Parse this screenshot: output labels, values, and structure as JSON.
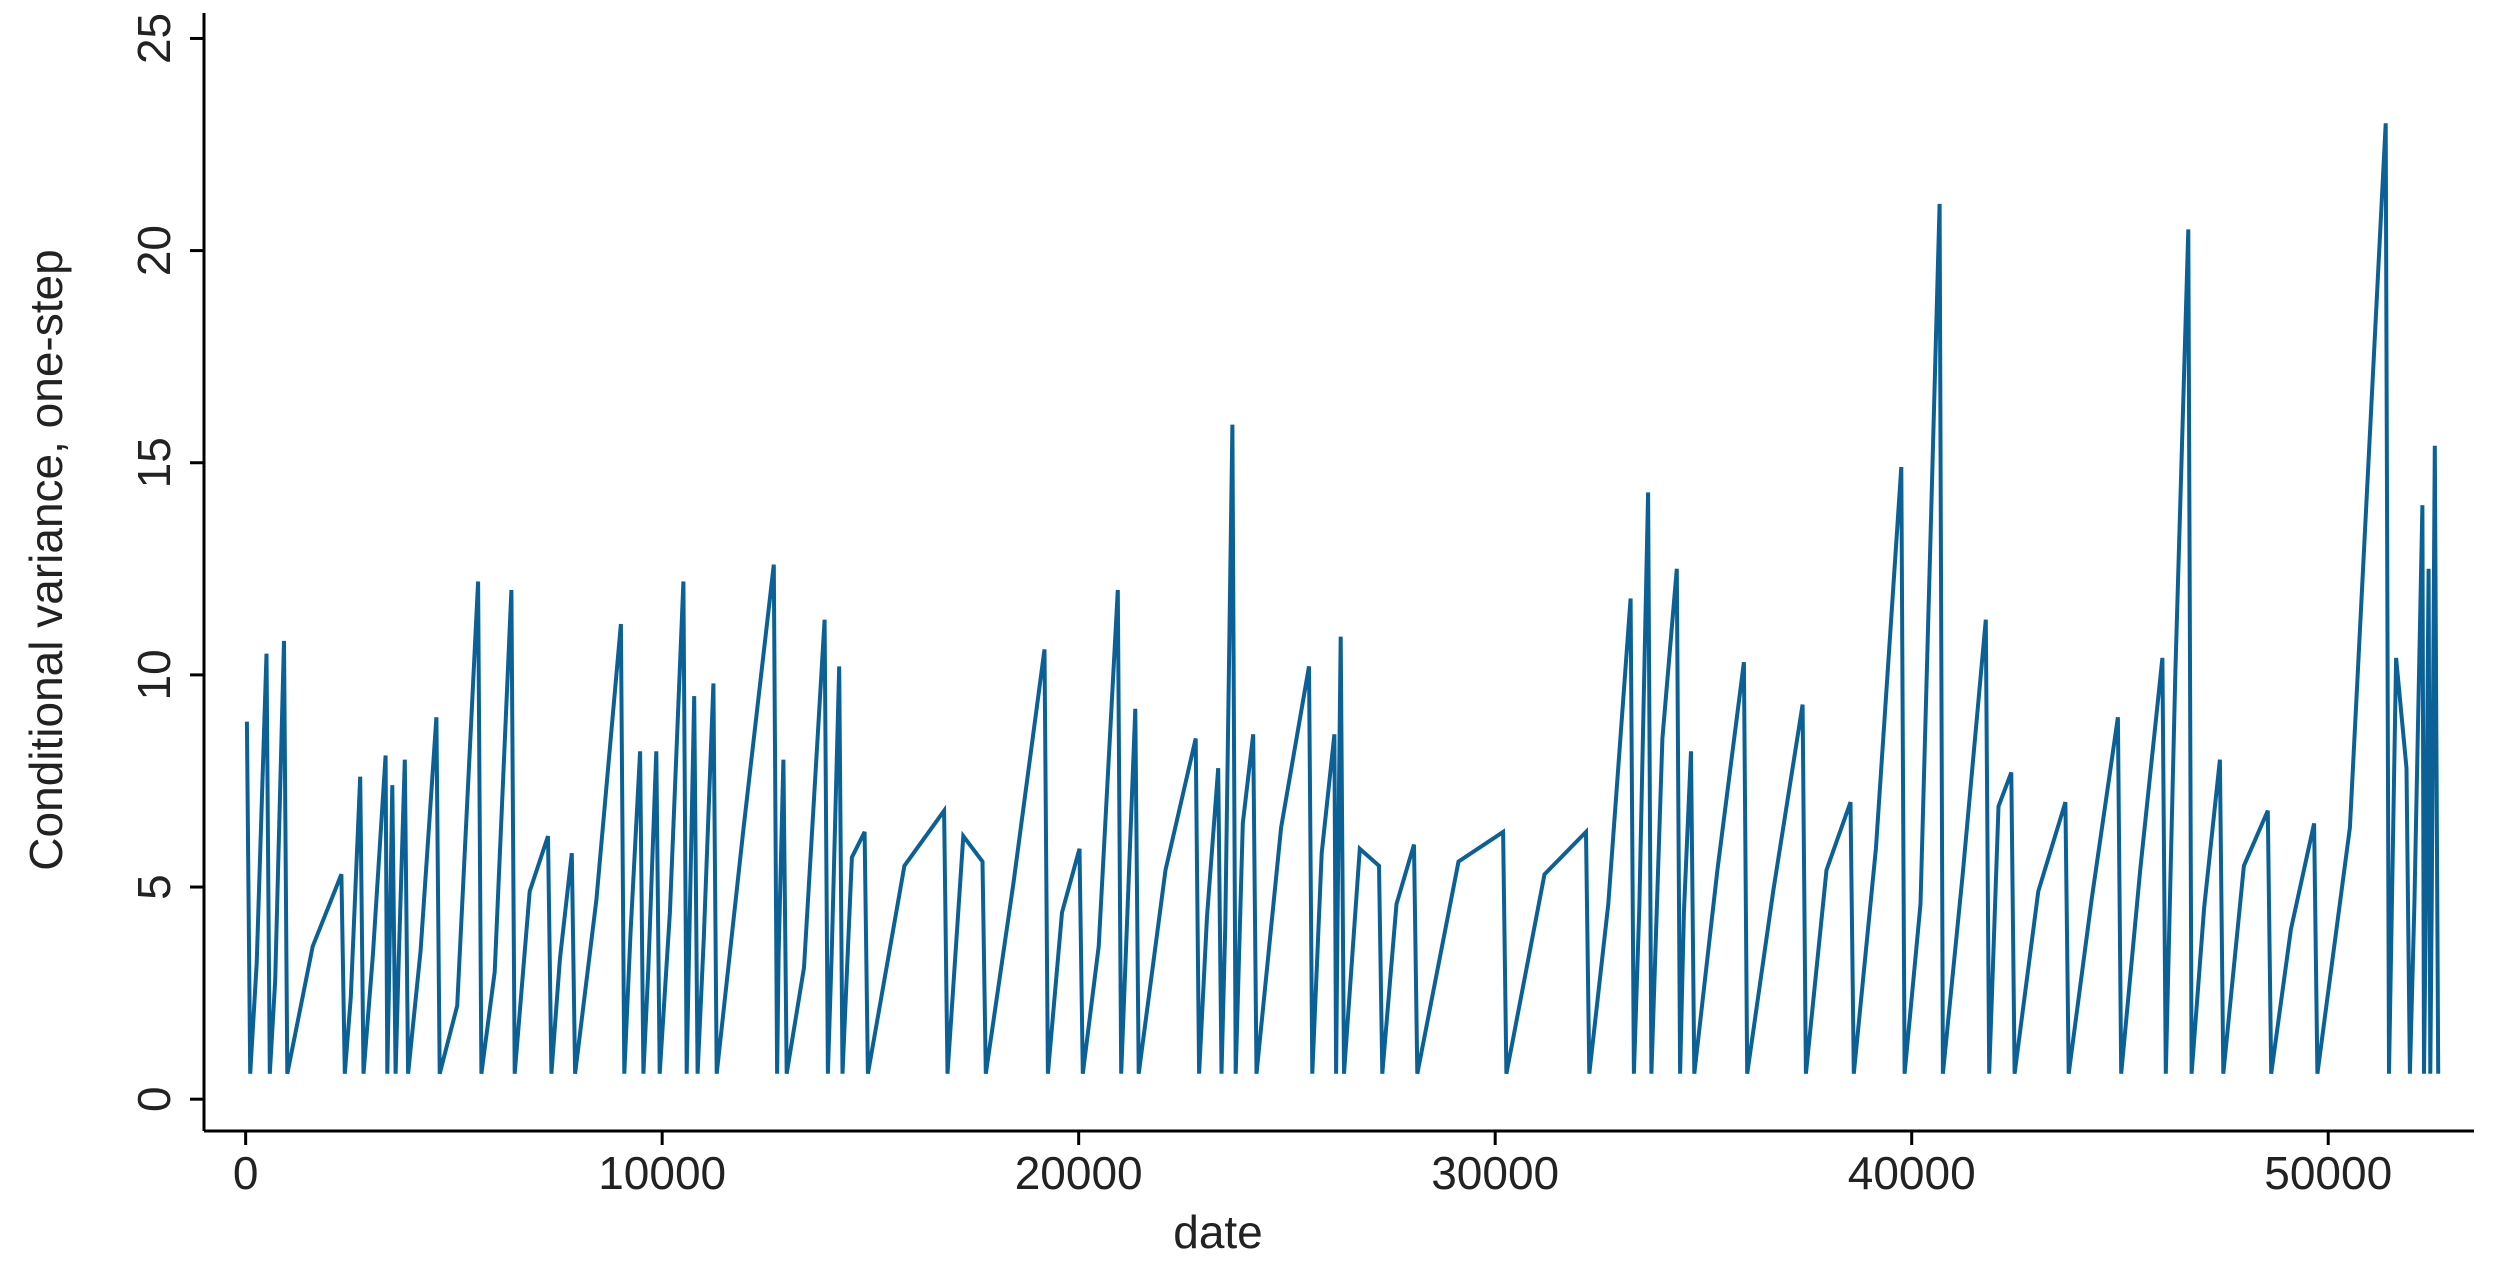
{
  "chart_data": {
    "type": "line",
    "x_label": "date",
    "y_label": "Conditional variance, one-step",
    "color": "#0b6196",
    "xlim": [
      -1000,
      53500
    ],
    "ylim": [
      -0.75,
      25.6
    ],
    "xticks": [
      0,
      10000,
      20000,
      30000,
      40000,
      50000
    ],
    "yticks": [
      0,
      5,
      10,
      15,
      20,
      25
    ],
    "x": [
      30,
      110,
      265,
      500,
      580,
      710,
      920,
      1000,
      1610,
      2300,
      2380,
      2525,
      2750,
      2830,
      3055,
      3360,
      3400,
      3440,
      3520,
      3600,
      3670,
      3820,
      3900,
      4200,
      4580,
      4660,
      5080,
      5580,
      5660,
      5980,
      6380,
      6460,
      6820,
      7260,
      7340,
      7545,
      7830,
      7910,
      8420,
      9010,
      9090,
      9240,
      9470,
      9550,
      9665,
      9860,
      9940,
      10185,
      10510,
      10590,
      10640,
      10770,
      10850,
      11000,
      11230,
      11310,
      11955,
      12680,
      12760,
      12795,
      12910,
      12990,
      13405,
      13900,
      13980,
      14075,
      14250,
      14330,
      14555,
      14860,
      14940,
      15815,
      16770,
      16850,
      17230,
      17690,
      17770,
      18435,
      19180,
      19260,
      19600,
      20020,
      20100,
      20480,
      20940,
      21020,
      21150,
      21360,
      21440,
      22085,
      22810,
      22890,
      23080,
      23350,
      23430,
      23520,
      23690,
      23770,
      23940,
      24190,
      24270,
      24860,
      25530,
      25610,
      25835,
      26140,
      26180,
      26215,
      26290,
      26370,
      26750,
      27210,
      27290,
      27630,
      28050,
      28130,
      29120,
      30190,
      30270,
      31185,
      32180,
      32260,
      32715,
      33250,
      33330,
      33460,
      33670,
      33750,
      34015,
      34360,
      34440,
      34530,
      34700,
      34780,
      35335,
      35970,
      36050,
      36675,
      37380,
      37460,
      37955,
      38530,
      38610,
      39140,
      39750,
      39830,
      40210,
      40670,
      40750,
      41225,
      41780,
      41860,
      42085,
      42390,
      42470,
      43040,
      43690,
      43770,
      44320,
      44950,
      45030,
      45485,
      46020,
      46100,
      46330,
      46640,
      46720,
      47020,
      47400,
      47480,
      47975,
      48550,
      48630,
      49105,
      49660,
      49740,
      50520,
      51380,
      51460,
      51630,
      51880,
      51960,
      52070,
      52260,
      52300,
      52335,
      52410,
      52450,
      52485,
      52560,
      52640
    ],
    "values": [
      8.9,
      0.6,
      3.2,
      10.5,
      0.6,
      2.8,
      10.8,
      0.6,
      3.6,
      5.3,
      0.6,
      2.4,
      7.6,
      0.6,
      3.4,
      8.1,
      0.6,
      2.6,
      7.4,
      0.6,
      3.1,
      8.0,
      0.6,
      3.5,
      9.0,
      0.6,
      2.2,
      12.2,
      0.6,
      3.0,
      12.0,
      0.6,
      4.9,
      6.2,
      0.6,
      3.3,
      5.8,
      0.6,
      4.7,
      11.2,
      0.6,
      3.9,
      8.2,
      0.6,
      3.0,
      8.2,
      0.6,
      4.4,
      12.2,
      0.6,
      3.2,
      9.5,
      0.6,
      3.8,
      9.8,
      0.6,
      6.4,
      12.6,
      0.6,
      3.4,
      8.0,
      0.6,
      3.1,
      11.3,
      0.6,
      3.6,
      10.2,
      0.6,
      5.7,
      6.3,
      0.6,
      5.5,
      6.8,
      0.6,
      6.2,
      5.6,
      0.6,
      5.1,
      10.6,
      0.6,
      4.4,
      5.9,
      0.6,
      3.6,
      12.0,
      0.6,
      3.9,
      9.2,
      0.6,
      5.4,
      8.5,
      0.6,
      4.3,
      7.8,
      0.6,
      4.1,
      15.9,
      0.6,
      6.5,
      8.6,
      0.6,
      6.4,
      10.2,
      0.6,
      5.8,
      8.6,
      0.6,
      4.2,
      10.9,
      0.6,
      5.9,
      5.5,
      0.6,
      4.6,
      6.0,
      0.6,
      5.6,
      6.3,
      0.6,
      5.3,
      6.3,
      0.6,
      4.6,
      11.8,
      0.6,
      4.5,
      14.3,
      0.6,
      8.5,
      12.5,
      0.6,
      4.4,
      8.2,
      0.6,
      5.4,
      10.3,
      0.6,
      4.9,
      9.3,
      0.6,
      5.4,
      7.0,
      0.6,
      5.9,
      14.9,
      0.6,
      4.6,
      21.1,
      0.6,
      5.3,
      11.3,
      0.6,
      6.9,
      7.7,
      0.6,
      4.9,
      7.0,
      0.6,
      4.7,
      9.0,
      0.6,
      5.4,
      10.4,
      0.6,
      10.1,
      20.5,
      0.6,
      4.5,
      8.0,
      0.6,
      5.5,
      6.8,
      0.6,
      4.0,
      6.5,
      0.6,
      6.4,
      23.0,
      0.6,
      10.4,
      7.8,
      0.6,
      4.6,
      14.0,
      0.6,
      3.8,
      12.5,
      0.6,
      4.6,
      15.4,
      0.6
    ]
  }
}
